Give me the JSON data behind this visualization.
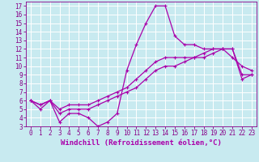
{
  "xlabel": "Windchill (Refroidissement éolien,°C)",
  "background_color": "#c8eaf0",
  "grid_color": "#ffffff",
  "line_color": "#aa00aa",
  "hours": [
    0,
    1,
    2,
    3,
    4,
    5,
    6,
    7,
    8,
    9,
    10,
    11,
    12,
    13,
    14,
    15,
    16,
    17,
    18,
    19,
    20,
    21,
    22,
    23
  ],
  "series1": [
    6,
    5,
    6,
    3.5,
    4.5,
    4.5,
    4,
    3,
    3.5,
    4.5,
    9.5,
    12.5,
    15,
    17,
    17,
    13.5,
    12.5,
    12.5,
    12,
    12,
    12,
    11,
    10,
    9.5
  ],
  "series2": [
    6,
    5.5,
    6.0,
    5.0,
    5.5,
    5.5,
    5.5,
    6.0,
    6.5,
    7.0,
    7.5,
    8.5,
    9.5,
    10.5,
    11.0,
    11.0,
    11.0,
    11.0,
    11.5,
    12.0,
    12.0,
    12.0,
    9.0,
    9.0
  ],
  "series3": [
    6,
    5.5,
    6.0,
    4.5,
    5.0,
    5.0,
    5.0,
    5.5,
    6.0,
    6.5,
    7.0,
    7.5,
    8.5,
    9.5,
    10.0,
    10.0,
    10.5,
    11.0,
    11.0,
    11.5,
    12.0,
    12.0,
    8.5,
    9.0
  ],
  "xlim": [
    -0.5,
    23.5
  ],
  "ylim": [
    3,
    17.5
  ],
  "yticks": [
    3,
    4,
    5,
    6,
    7,
    8,
    9,
    10,
    11,
    12,
    13,
    14,
    15,
    16,
    17
  ],
  "xticks": [
    0,
    1,
    2,
    3,
    4,
    5,
    6,
    7,
    8,
    9,
    10,
    11,
    12,
    13,
    14,
    15,
    16,
    17,
    18,
    19,
    20,
    21,
    22,
    23
  ],
  "tick_fontsize": 5.5,
  "xlabel_fontsize": 6.5,
  "line_width": 0.9,
  "marker": "+",
  "marker_size": 3.5,
  "marker_linewidth": 0.8
}
